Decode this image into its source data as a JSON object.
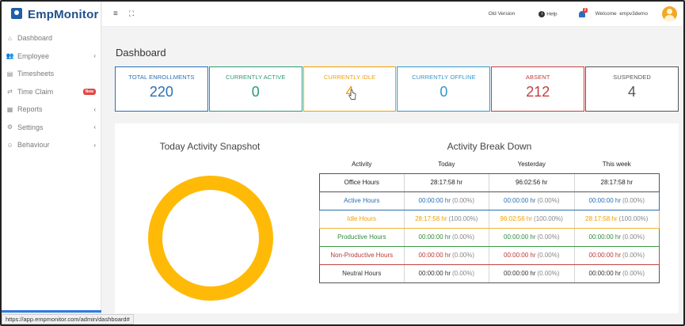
{
  "brand": {
    "name": "EmpMonitor"
  },
  "sidebar": {
    "items": [
      {
        "label": "Dashboard",
        "icon": "home-icon",
        "glyph": "⌂",
        "chevron": "",
        "badge": ""
      },
      {
        "label": "Employee",
        "icon": "users-icon",
        "glyph": "👥",
        "chevron": "‹",
        "badge": ""
      },
      {
        "label": "Timesheets",
        "icon": "timesheet-icon",
        "glyph": "▤",
        "chevron": "",
        "badge": ""
      },
      {
        "label": "Time Claim",
        "icon": "swap-arrows-icon",
        "glyph": "⇄",
        "chevron": "",
        "badge": "New"
      },
      {
        "label": "Reports",
        "icon": "report-icon",
        "glyph": "▦",
        "chevron": "‹",
        "badge": ""
      },
      {
        "label": "Settings",
        "icon": "gear-icon",
        "glyph": "⚙",
        "chevron": "‹",
        "badge": ""
      },
      {
        "label": "Behaviour",
        "icon": "user-behaviour-icon",
        "glyph": "☺",
        "chevron": "‹",
        "badge": ""
      }
    ]
  },
  "topbar": {
    "menu_glyph": "≡",
    "expand_glyph": "⛶",
    "old_version": "Old Version",
    "help": "Help",
    "notification_count": "8",
    "welcome": "Welcome  empv3demo"
  },
  "page": {
    "title": "Dashboard"
  },
  "stats": [
    {
      "label": "TOTAL ENROLLMENTS",
      "value": "220",
      "color": "#2a6fb5"
    },
    {
      "label": "CURRENTLY ACTIVE",
      "value": "0",
      "color": "#2a9a72"
    },
    {
      "label": "CURRENTLY IDLE",
      "value": "4",
      "color": "#f0a000"
    },
    {
      "label": "CURRENTLY OFFLINE",
      "value": "0",
      "color": "#3497c9"
    },
    {
      "label": "ABSENT",
      "value": "212",
      "color": "#c2403e"
    },
    {
      "label": "SUSPENDED",
      "value": "4",
      "color": "#555555"
    }
  ],
  "snapshot": {
    "title": "Today Activity Snapshot",
    "ring_color": "#ffba08"
  },
  "breakdown": {
    "title": "Activity Break Down",
    "headers": [
      "Activity",
      "Today",
      "Yesterday",
      "This week"
    ],
    "rows": [
      {
        "name": "Office Hours",
        "color": "#222222",
        "border": "#555555",
        "cells": [
          {
            "val": "28:17:58 hr",
            "pct": ""
          },
          {
            "val": "96:02:56 hr",
            "pct": ""
          },
          {
            "val": "28:17:58 hr",
            "pct": ""
          }
        ]
      },
      {
        "name": "Active Hours",
        "color": "#2a6fb5",
        "border": "#2a6fb5",
        "cells": [
          {
            "val": "00:00:00 hr",
            "pct": "(0.00%)"
          },
          {
            "val": "00:00:00 hr",
            "pct": "(0.00%)"
          },
          {
            "val": "00:00:00 hr",
            "pct": "(0.00%)"
          }
        ]
      },
      {
        "name": "Idle Hours",
        "color": "#f0a000",
        "border": "#f2b633",
        "cells": [
          {
            "val": "28:17:58 hr",
            "pct": "(100.00%)"
          },
          {
            "val": "96:02:56 hr",
            "pct": "(100.00%)"
          },
          {
            "val": "28:17:58 hr",
            "pct": "(100.00%)"
          }
        ]
      },
      {
        "name": "Productive Hours",
        "color": "#2e8b3e",
        "border": "#3a9b48",
        "cells": [
          {
            "val": "00:00:00 hr",
            "pct": "(0.00%)"
          },
          {
            "val": "00:00:00 hr",
            "pct": "(0.00%)"
          },
          {
            "val": "00:00:00 hr",
            "pct": "(0.00%)"
          }
        ]
      },
      {
        "name": "Non-Productive Hours",
        "color": "#b83a3a",
        "border": "#c04444",
        "cells": [
          {
            "val": "00:00:00 hr",
            "pct": "(0.00%)"
          },
          {
            "val": "00:00:00 hr",
            "pct": "(0.00%)"
          },
          {
            "val": "00:00:00 hr",
            "pct": "(0.00%)"
          }
        ]
      },
      {
        "name": "Neutral Hours",
        "color": "#333333",
        "border": "#555555",
        "cells": [
          {
            "val": "00:00:00 hr",
            "pct": "(0.00%)"
          },
          {
            "val": "00:00:00 hr",
            "pct": "(0.00%)"
          },
          {
            "val": "00:00:00 hr",
            "pct": "(0.00%)"
          }
        ]
      }
    ]
  },
  "status_bar": {
    "url": "https://app.empmonitor.com/admin/dashboard#"
  }
}
